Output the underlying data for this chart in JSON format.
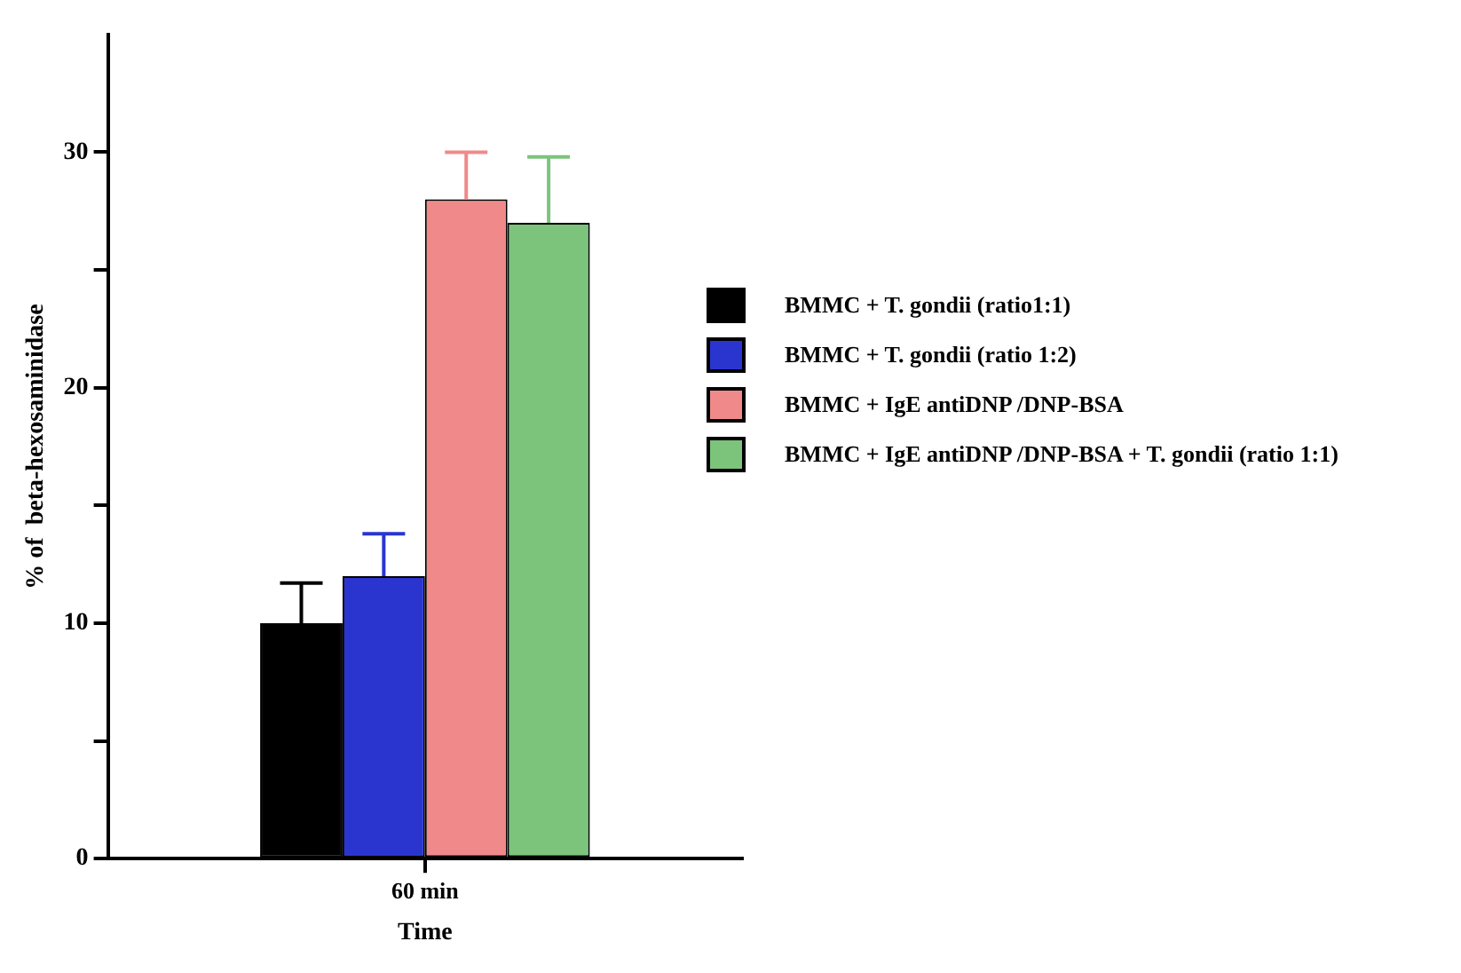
{
  "chart_data": {
    "type": "bar",
    "xlabel": "Time",
    "ylabel": "% of  beta-hexosaminidase",
    "categories": [
      "60 min"
    ],
    "series": [
      {
        "name": "BMMC + T.  gondii (ratio1:1)",
        "color": "#000000",
        "values": [
          10
        ],
        "errors": [
          [
            10,
            11.7
          ]
        ]
      },
      {
        "name": "BMMC + T.  gondii (ratio 1:2)",
        "color": "#2a35d0",
        "values": [
          12
        ],
        "errors": [
          [
            12,
            13.8
          ]
        ]
      },
      {
        "name": "BMMC + IgE antiDNP /DNP-BSA",
        "color": "#f08a8a",
        "values": [
          28
        ],
        "errors": [
          [
            28,
            30
          ]
        ]
      },
      {
        "name": "BMMC + IgE antiDNP /DNP-BSA + T.  gondii (ratio 1:1)",
        "color": "#7cc47c",
        "values": [
          27
        ],
        "errors": [
          [
            27,
            29.8
          ]
        ]
      }
    ],
    "ylim": [
      0,
      35
    ],
    "yticks": [
      0,
      {
        "value": 5,
        "label": null
      },
      10,
      {
        "value": 15,
        "label": null
      },
      20,
      {
        "value": 25,
        "label": null
      },
      30
    ],
    "legend": "right"
  }
}
